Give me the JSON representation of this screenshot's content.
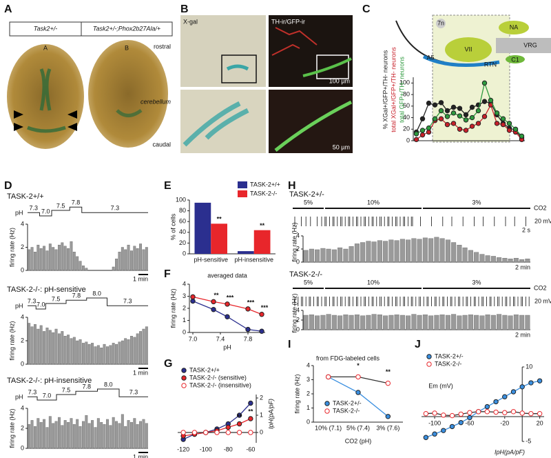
{
  "figure": {
    "panel_labels": [
      "A",
      "B",
      "C",
      "D",
      "E",
      "F",
      "G",
      "H",
      "I",
      "J"
    ],
    "a": {
      "header": [
        "Task2+/-",
        "Task2+/-;Phox2b27Ala/+"
      ],
      "sublabels": [
        "A",
        "B"
      ],
      "orientation": [
        "rostral",
        "cerebellum",
        "caudal"
      ]
    },
    "b": {
      "titles": [
        "X-gal",
        "TH-ir/GFP-ir"
      ],
      "scales": [
        "100 µm",
        "50 µm"
      ]
    },
    "c": {
      "regions": [
        "7n",
        "NA",
        "VII",
        "VRG",
        "RTN",
        "C1",
        "A5"
      ]
    },
    "d": {
      "y_label": "firing rate (Hz)",
      "protocol_label": "pH",
      "scale": "1 min"
    },
    "h": {
      "co2_label": "CO2",
      "protocol": [
        "5%",
        "10%",
        "3%"
      ],
      "y_label": "firing rate (Hz)",
      "scales": [
        "20 mV",
        "2 s",
        "2 min"
      ]
    }
  },
  "chart_data": [
    {
      "type": "line",
      "ylim": [
        0,
        110
      ],
      "yticks": [
        0,
        20,
        40,
        60,
        80,
        100
      ],
      "series": [
        {
          "name": "% XGal+/GFP+/TH- neurons",
          "color": "#222222",
          "values": [
            15,
            38,
            65,
            62,
            66,
            52,
            58,
            56,
            45,
            58,
            62,
            68,
            65,
            45,
            30,
            22,
            18,
            5
          ]
        },
        {
          "name": "total XGal+/GFP+/TH- neurons",
          "color": "#c8202a",
          "values": [
            2,
            10,
            15,
            35,
            38,
            28,
            30,
            20,
            18,
            25,
            30,
            42,
            62,
            30,
            28,
            18,
            15,
            2
          ]
        },
        {
          "name": "total GFP+/TH- neurons",
          "color": "#2e9a3e",
          "values": [
            12,
            18,
            22,
            38,
            52,
            42,
            48,
            43,
            36,
            40,
            52,
            100,
            70,
            48,
            38,
            30,
            20,
            8
          ]
        }
      ]
    },
    {
      "type": "bar",
      "title": "TASK-2+/+",
      "protocol": [
        "7.3",
        "7.0",
        "7.5",
        "7.8",
        "7.3"
      ],
      "ylim": [
        0,
        4
      ],
      "yticks": [
        0,
        2,
        4
      ],
      "values": [
        1.8,
        2.0,
        1.6,
        2.2,
        1.9,
        2.1,
        1.7,
        2.3,
        2.0,
        1.8,
        2.2,
        2.4,
        2.1,
        1.9,
        2.5,
        1.6,
        1.2,
        0.8,
        0.4,
        0.2,
        0,
        0,
        0,
        0,
        0,
        0,
        0,
        0,
        0.3,
        1.0,
        1.6,
        2.0,
        1.8,
        2.2,
        1.7,
        2.1,
        1.9,
        2.3,
        1.8,
        2.0
      ]
    },
    {
      "type": "bar",
      "title": "TASK-2-/-: pH-sensitive",
      "protocol": [
        "7.3",
        "7.0",
        "7.5",
        "7.8",
        "8.0",
        "7.3"
      ],
      "ylim": [
        0,
        4
      ],
      "yticks": [
        0,
        2,
        4
      ],
      "values": [
        3.5,
        3.2,
        3.4,
        3.0,
        3.3,
        2.8,
        3.1,
        2.9,
        2.7,
        3.0,
        2.6,
        2.8,
        2.4,
        2.5,
        2.2,
        2.3,
        2.0,
        2.1,
        1.8,
        1.9,
        1.7,
        1.8,
        1.5,
        1.6,
        1.4,
        1.7,
        1.5,
        1.6,
        1.8,
        1.7,
        1.9,
        2.0,
        2.2,
        2.1,
        2.4,
        2.3,
        2.6,
        2.8,
        3.0,
        3.2
      ]
    },
    {
      "type": "bar",
      "title": "TASK-2-/-: pH-insensitive",
      "protocol": [
        "7.3",
        "7.0",
        "7.5",
        "7.8",
        "8.0",
        "7.3"
      ],
      "ylim": [
        0,
        4
      ],
      "yticks": [
        0,
        2,
        4
      ],
      "values": [
        2.4,
        2.8,
        2.2,
        3.0,
        2.6,
        2.9,
        2.1,
        3.2,
        2.5,
        2.7,
        3.1,
        2.3,
        2.8,
        2.6,
        3.0,
        2.4,
        2.9,
        2.2,
        2.7,
        3.3,
        2.5,
        2.8,
        2.1,
        3.0,
        2.6,
        2.4,
        2.9,
        2.3,
        3.1,
        2.7,
        2.5,
        3.4,
        2.2,
        2.8,
        2.6,
        3.0,
        2.4,
        2.7,
        2.9,
        2.5
      ]
    },
    {
      "type": "grouped-bar",
      "y_label": "% of cells",
      "categories": [
        "pH-sensitive",
        "pH-insensitive"
      ],
      "ylim": [
        0,
        100
      ],
      "yticks": [
        0,
        20,
        40,
        60,
        80,
        100
      ],
      "series": [
        {
          "name": "TASK-2+/+",
          "color": "#2b2f8f",
          "values": [
            95,
            5
          ]
        },
        {
          "name": "TASK-2-/-",
          "color": "#e8262b",
          "values": [
            56,
            44
          ]
        }
      ],
      "annotations": [
        "**",
        "**"
      ]
    },
    {
      "type": "line",
      "title": "averaged data",
      "x_label": "pH",
      "y_label": "firing rate (Hz)",
      "x": [
        7.0,
        7.3,
        7.5,
        7.8,
        8.0
      ],
      "xlim": [
        6.95,
        8.05
      ],
      "xticks": [
        {
          "value": 7.0,
          "label": "7.0"
        },
        {
          "value": 7.4,
          "label": "7.4"
        },
        {
          "value": 7.8,
          "label": "7.8"
        }
      ],
      "ylim": [
        0,
        4
      ],
      "yticks": [
        0,
        1,
        2,
        3,
        4
      ],
      "series": [
        {
          "name": "TASK-2+/+",
          "color": "#2b2f8f",
          "values": [
            2.6,
            1.9,
            1.3,
            0.25,
            0.1
          ]
        },
        {
          "name": "TASK-2-/-",
          "color": "#e8262b",
          "values": [
            2.95,
            2.55,
            2.35,
            1.95,
            1.5
          ]
        }
      ],
      "annotations": [
        "**",
        "***",
        "***",
        "***"
      ]
    },
    {
      "type": "line",
      "y_label": "IpH(pA/pF)",
      "y_side": "right",
      "x_axis_at_zero": true,
      "x": [
        -120,
        -110,
        -100,
        -90,
        -80,
        -70,
        -60
      ],
      "xlim": [
        -125,
        -55
      ],
      "xticks": [
        -120,
        -100,
        -80,
        -60
      ],
      "ylim": [
        -0.6,
        2.2
      ],
      "yticks": [
        0,
        1,
        2
      ],
      "series": [
        {
          "name": "TASK-2+/+",
          "color": "#2b2f8f",
          "values": [
            -0.4,
            -0.1,
            0,
            0.2,
            0.5,
            1.0,
            1.7
          ]
        },
        {
          "name": "TASK-2-/- (sensitive)",
          "color": "#e8262b",
          "values": [
            -0.2,
            -0.1,
            0,
            0.1,
            0.3,
            0.5,
            0.8
          ]
        },
        {
          "name": "TASK-2-/- (insensitive)",
          "color": "#e8262b",
          "marker": "open",
          "values": [
            0,
            0,
            0,
            0,
            0,
            0,
            0
          ]
        }
      ],
      "annotations": [
        "**",
        "**"
      ]
    },
    {
      "type": "bar",
      "title": "TASK-2+/-",
      "ylim": [
        0,
        4
      ],
      "yticks": [
        0,
        2,
        4
      ],
      "values": [
        1.8,
        2.0,
        1.9,
        2.1,
        2.0,
        1.9,
        2.2,
        2.0,
        2.4,
        2.8,
        3.0,
        3.2,
        3.1,
        3.3,
        3.2,
        3.4,
        3.3,
        3.5,
        3.4,
        3.6,
        3.5,
        3.7,
        3.6,
        3.8,
        3.6,
        3.4,
        3.0,
        2.6,
        2.2,
        1.8,
        1.5,
        1.2,
        1.0,
        0.9,
        0.7,
        0.6,
        0.5,
        0.6,
        0.4,
        0.5
      ]
    },
    {
      "type": "bar",
      "title": "TASK-2-/-",
      "ylim": [
        0,
        4
      ],
      "yticks": [
        0,
        2,
        4
      ],
      "values": [
        3.0,
        3.1,
        2.9,
        3.0,
        3.2,
        3.0,
        2.9,
        3.1,
        3.0,
        3.1,
        2.9,
        3.0,
        3.2,
        3.1,
        2.9,
        3.0,
        3.1,
        3.0,
        2.9,
        3.2,
        3.0,
        3.1,
        2.9,
        3.0,
        3.1,
        3.0,
        3.2,
        2.9,
        3.0,
        3.1,
        3.0,
        2.9,
        3.1,
        3.0,
        3.2,
        3.0,
        2.9,
        3.1,
        3.0,
        3.0
      ]
    },
    {
      "type": "line",
      "title": "from FDG-labeled cells",
      "x_label": "CO2 (pH)",
      "y_label": "firing rate (Hz)",
      "categories": [
        "10% (7.1)",
        "5% (7.4)",
        "3% (7.6)"
      ],
      "ylim": [
        0,
        4
      ],
      "yticks": [
        0,
        1,
        2,
        3,
        4
      ],
      "series": [
        {
          "name": "TASK-2+/-",
          "color": "#3a8fe0",
          "values": [
            3.2,
            2.1,
            0.4
          ]
        },
        {
          "name": "TASK-2-/-",
          "color": "#e8262b",
          "marker": "open",
          "values": [
            3.2,
            3.2,
            2.75
          ]
        }
      ],
      "annotations": [
        "*",
        "**"
      ]
    },
    {
      "type": "line",
      "origin_axes": true,
      "y_label": "Em (mV)",
      "x_label": "IpH(pA/pF)",
      "x": [
        -110,
        -100,
        -90,
        -80,
        -70,
        -60,
        -50,
        -40,
        -30,
        -20,
        -10,
        0,
        10,
        20
      ],
      "xlim": [
        -115,
        25
      ],
      "xticks": [
        -100,
        -60,
        -20,
        20
      ],
      "ylim": [
        -5,
        10
      ],
      "yticks": [
        -5,
        10
      ],
      "series": [
        {
          "name": "TASK-2+/-",
          "color": "#3a8fe0",
          "values": [
            -4.2,
            -3.5,
            -2.8,
            -2,
            -1.2,
            -0.2,
            1,
            2,
            3,
            4,
            5,
            6,
            6.8,
            7.2
          ]
        },
        {
          "name": "TASK-2-/-",
          "color": "#e8262b",
          "marker": "open",
          "values": [
            0.6,
            0.7,
            0.3,
            0.2,
            0.5,
            0.8,
            1,
            1,
            0.9,
            0.8,
            1,
            0.7,
            0.6,
            0.6
          ]
        }
      ]
    }
  ]
}
